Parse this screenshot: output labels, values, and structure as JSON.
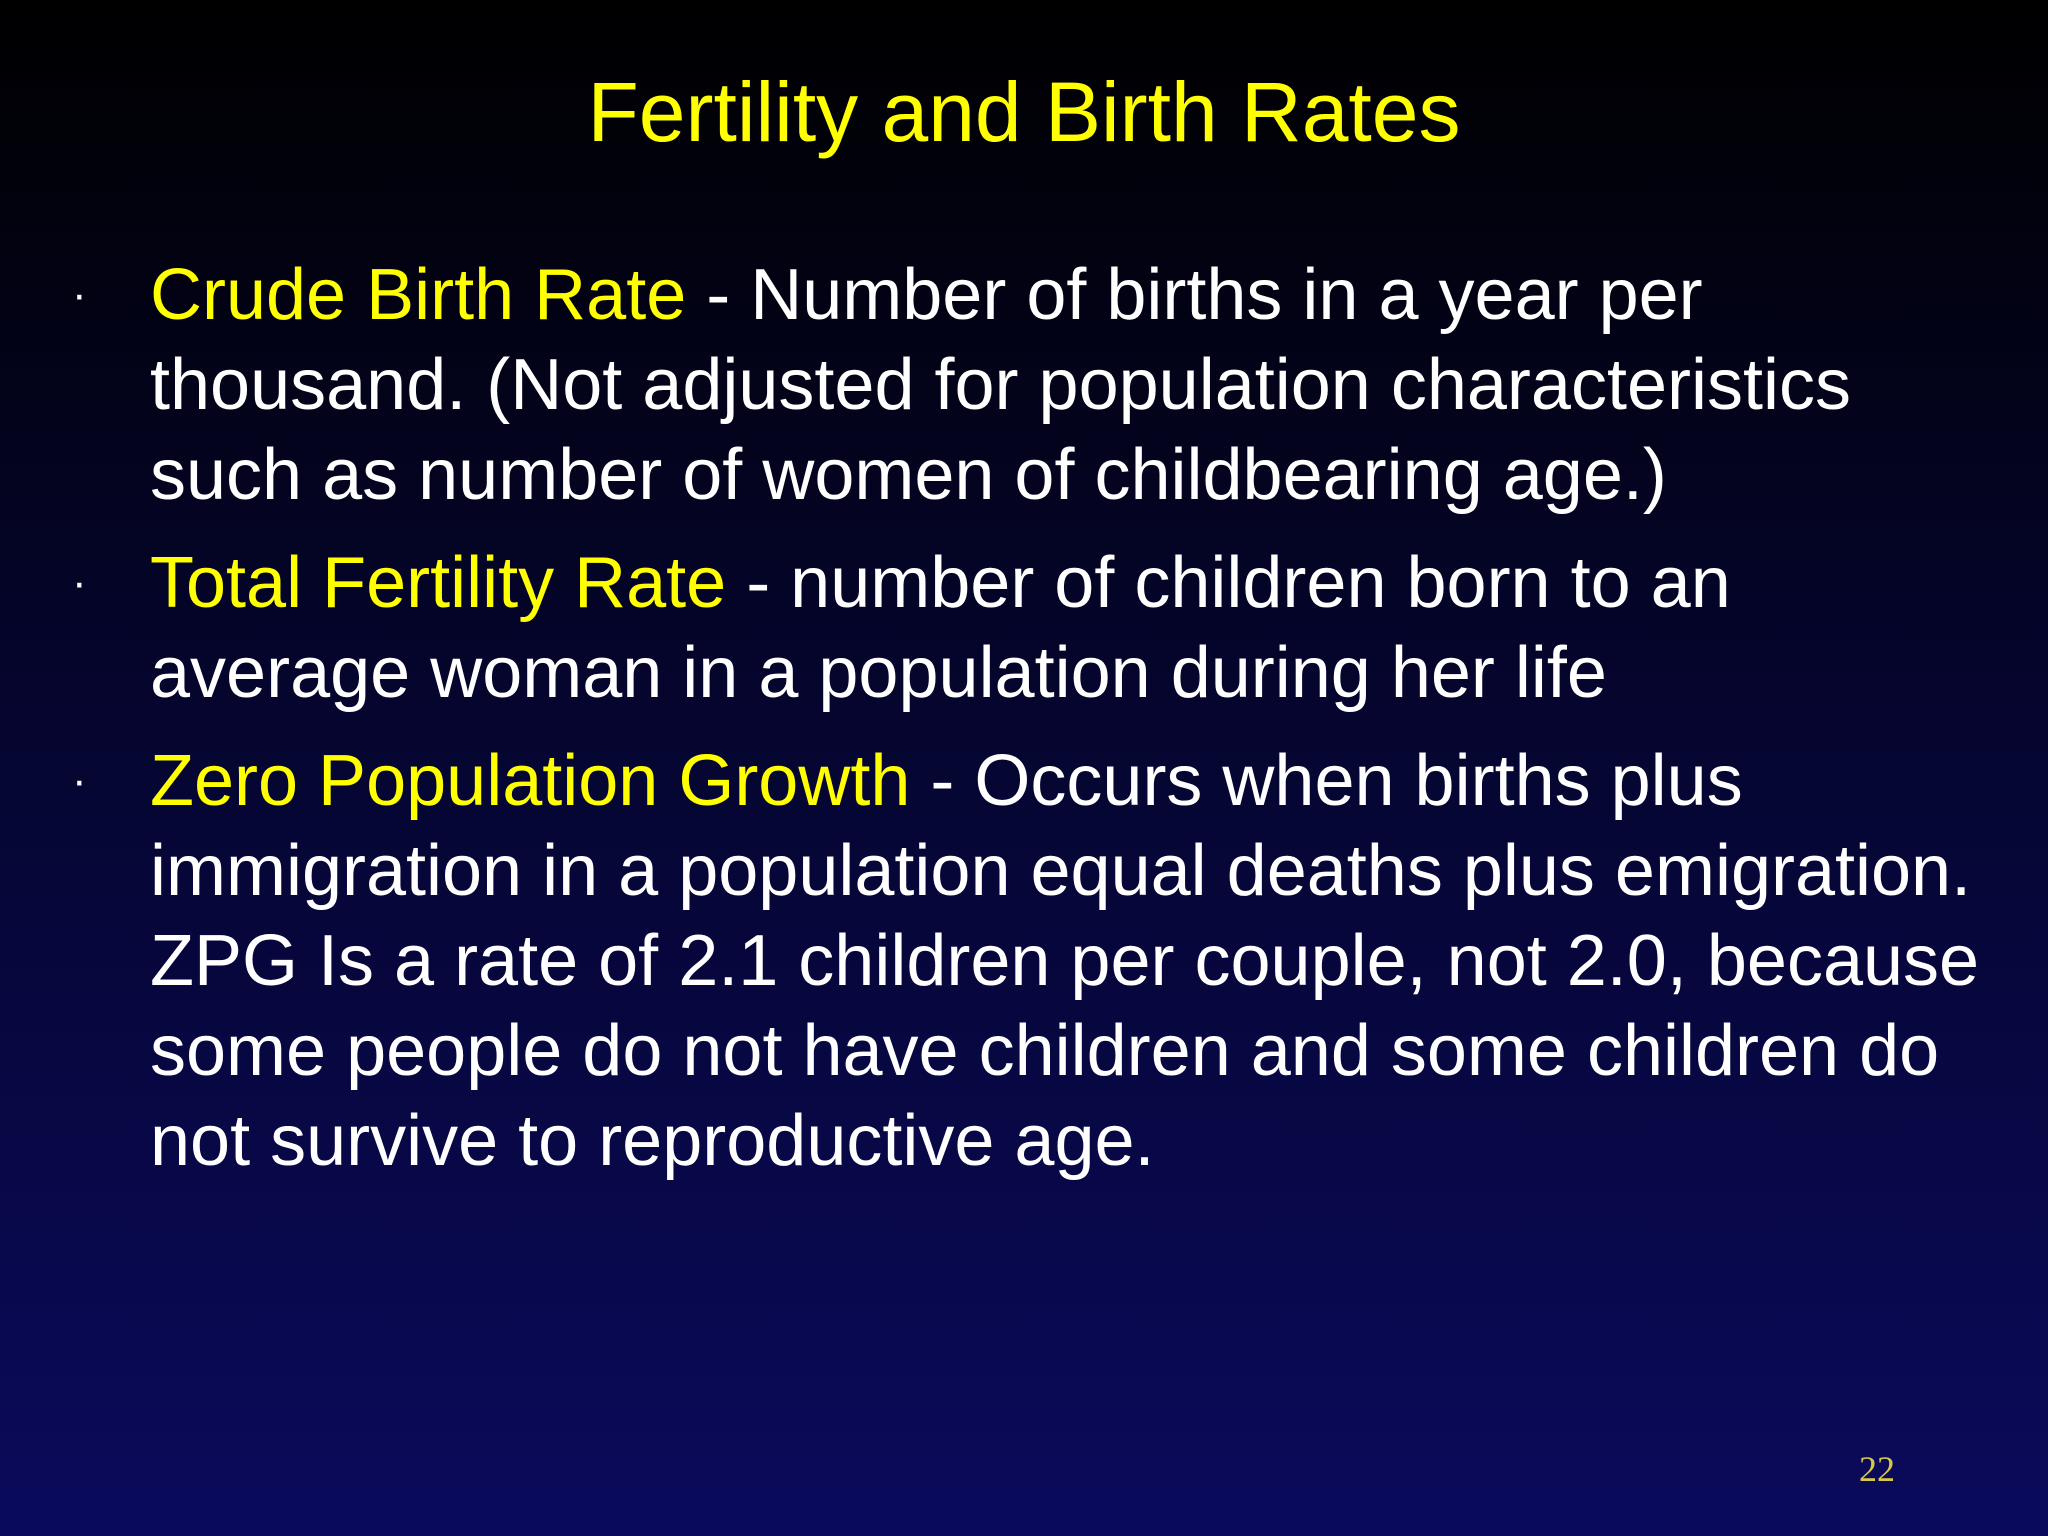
{
  "slide": {
    "title": "Fertility and Birth Rates",
    "page_number": "22",
    "bullet_symbol": "·",
    "bullets": [
      {
        "term": "Crude Birth Rate",
        "definition": " - Number of births in a year per thousand. (Not adjusted for population characteristics such as number of women of childbearing age.)"
      },
      {
        "term": "Total Fertility Rate",
        "definition": " - number of children born to an average woman in a population during her life"
      },
      {
        "term": "Zero Population Growth",
        "definition": " - Occurs when births plus immigration in a population equal deaths plus emigration. ZPG Is a rate of 2.1 children per couple, not 2.0, because some people do not have children and some children do not survive to reproductive age."
      }
    ],
    "colors": {
      "title": "#ffff00",
      "term": "#ffff00",
      "body_text": "#ffffff",
      "background_top": "#000000",
      "background_bottom": "#0a0a5c",
      "page_number": "#d8c84a"
    }
  }
}
